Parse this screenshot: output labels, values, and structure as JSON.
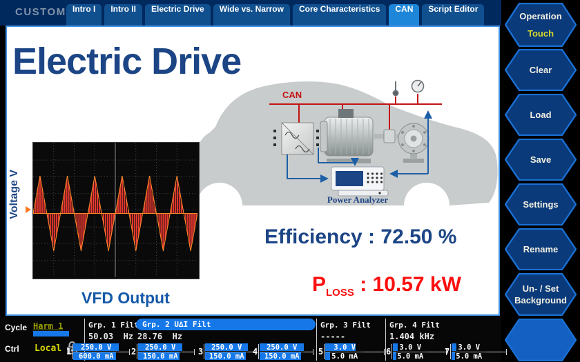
{
  "header": {
    "brand": "CUSTOM",
    "tabs": [
      {
        "label": "Intro I"
      },
      {
        "label": "Intro II"
      },
      {
        "label": "Electric Drive"
      },
      {
        "label": "Wide vs. Narrow"
      },
      {
        "label": "Core Characteristics"
      },
      {
        "label": "CAN",
        "active": true
      },
      {
        "label": "Script Editor"
      }
    ]
  },
  "sidebar": {
    "buttons": [
      {
        "label": "Operation",
        "sublabel": "Touch"
      },
      {
        "label": "Clear"
      },
      {
        "label": "Load"
      },
      {
        "label": "Save"
      },
      {
        "label": "Settings"
      },
      {
        "label": "Rename"
      },
      {
        "label": "Un- / Set",
        "label2": "Background"
      },
      {
        "label": ""
      }
    ]
  },
  "main": {
    "title": "Electric Drive",
    "diagram": {
      "can": "CAN",
      "analyzer": "Power Analyzer"
    },
    "scope": {
      "ylabel": "Voltage V",
      "caption": "VFD Output"
    },
    "metrics": {
      "efficiency": "Efficiency : 72.50 %",
      "ploss_base": "P",
      "ploss_sub": "LOSS",
      "ploss_rest": " : 10.57 kW"
    }
  },
  "statusbar": {
    "cycle_label": "Cycle",
    "cycle_value": "Harm 1",
    "ctrl_label": "Ctrl",
    "ctrl_value": "Local",
    "groups": [
      {
        "name": "Grp. 1 Filt",
        "freq": "50.03  Hz",
        "selected": false
      },
      {
        "name": "Grp. 2 U∆I Filt",
        "freq": "28.76  Hz",
        "selected": true
      },
      {
        "name": "Grp. 3 Filt",
        "freq": "-----",
        "selected": false
      },
      {
        "name": "Grp. 4 Filt",
        "freq": "1.404 kHz",
        "selected": false
      }
    ],
    "channels": [
      {
        "num": "1",
        "v": "250.0 V",
        "ma": "600.0 mA"
      },
      {
        "num": "2",
        "v": "250.0 V",
        "ma": "150.0 mA"
      },
      {
        "num": "3",
        "v": "250.0 V",
        "ma": "150.0 mA"
      },
      {
        "num": "4",
        "v": "250.0 V",
        "ma": "150.0 mA"
      },
      {
        "num": "5",
        "v": "3.0 V",
        "ma": "5.0 mA"
      },
      {
        "num": "6",
        "v": "3.0 V",
        "ma": "5.0 mA"
      },
      {
        "num": "7",
        "v": "3.0 V",
        "ma": "5.0 mA"
      }
    ]
  },
  "colors": {
    "topbar": "#00295e",
    "tab": "#11508f",
    "tab_active": "#1e86d9",
    "accent_bar": "#1678e8",
    "title_blue": "#1c4586",
    "alert_red": "#fb0f0f",
    "can_red": "#c41212",
    "harm_olive": "#9aa000",
    "local_yellow": "#d6d600"
  }
}
